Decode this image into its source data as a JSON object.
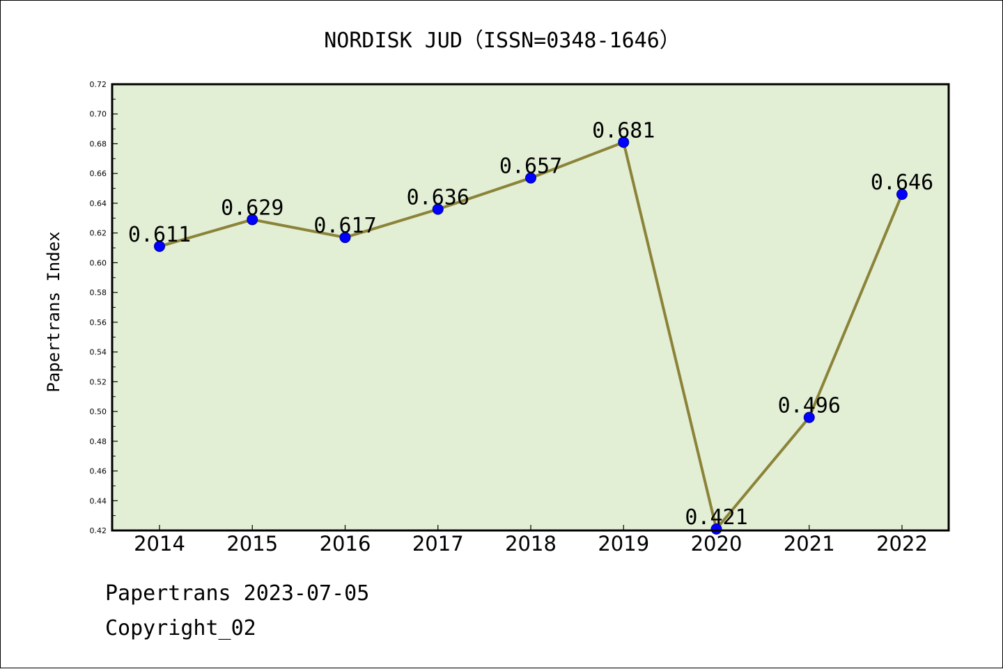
{
  "chart_data": {
    "type": "line",
    "title": "NORDISK JUD（ISSN=0348-1646）",
    "xlabel": "",
    "ylabel": "Papertrans Index",
    "categories": [
      "2014",
      "2015",
      "2016",
      "2017",
      "2018",
      "2019",
      "2020",
      "2021",
      "2022"
    ],
    "series": [
      {
        "values": [
          0.611,
          0.629,
          0.617,
          0.636,
          0.657,
          0.681,
          0.421,
          0.496,
          0.646
        ],
        "data_labels": [
          "0.611",
          "0.629",
          "0.617",
          "0.636",
          "0.657",
          "0.681",
          "0.421",
          "0.496",
          "0.646"
        ]
      }
    ],
    "ylim": [
      0.42,
      0.72
    ],
    "yticks": [
      "0.42",
      "0.44",
      "0.46",
      "0.48",
      "0.50",
      "0.52",
      "0.54",
      "0.56",
      "0.58",
      "0.60",
      "0.62",
      "0.64",
      "0.66",
      "0.68",
      "0.70",
      "0.72"
    ],
    "grid": false,
    "colors": {
      "plot_background": "#e2efd5",
      "line": "#8b8338",
      "marker": "#0000ff",
      "marker_edge": "#00008b"
    }
  },
  "footer": {
    "source": "Papertrans 2023-07-05",
    "copyright": "Copyright_02"
  }
}
